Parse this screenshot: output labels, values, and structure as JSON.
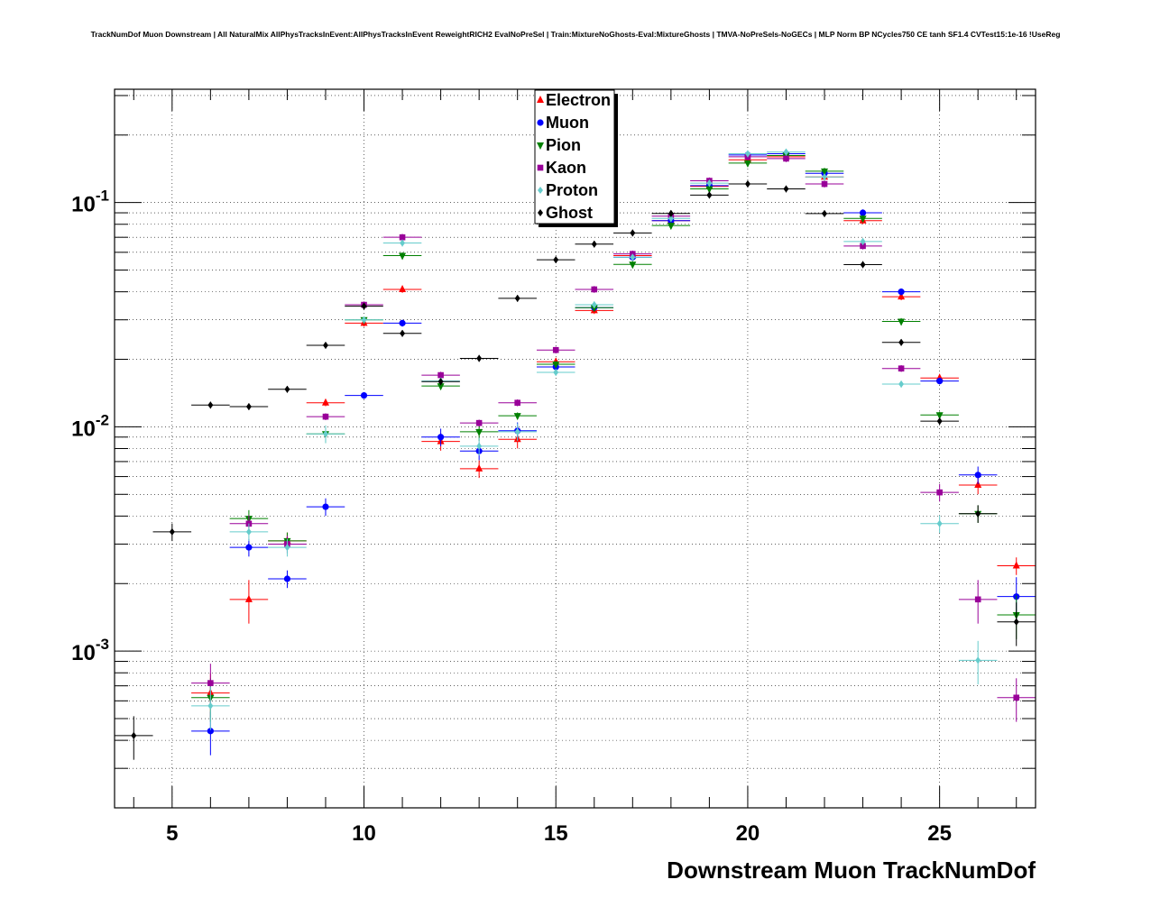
{
  "chart_data": {
    "type": "scatter",
    "title": "TrackNumDof Muon Downstream | All NaturalMix AllPhysTracksInEvent:AllPhysTracksInEvent ReweightRICH2 EvalNoPreSel | Train:MixtureNoGhosts-Eval:MixtureGhosts | TMVA-NoPreSels-NoGECs | MLP Norm BP NCycles750 CE tanh SF1.4 CVTest15:1e-16 !UseReg",
    "xlabel": "Downstream Muon TrackNumDof",
    "ylabel": "",
    "xlim": [
      3.5,
      27.5
    ],
    "ylim": [
      0.0002,
      0.32
    ],
    "yscale": "log",
    "grid": true,
    "legend_position": "top-center",
    "x_ticks": [
      "5",
      "10",
      "15",
      "20",
      "25"
    ],
    "y_ticks": [
      {
        "base": "10",
        "exp": "-1"
      },
      {
        "base": "10",
        "exp": "-2"
      },
      {
        "base": "10",
        "exp": "-3"
      }
    ],
    "series": [
      {
        "name": "Electron",
        "color": "#ff0000",
        "marker": "triangle-up",
        "points": [
          [
            6,
            0.00065
          ],
          [
            7,
            0.0017
          ],
          [
            8,
            0.0031
          ],
          [
            9,
            0.0128
          ],
          [
            10,
            0.029
          ],
          [
            11,
            0.041
          ],
          [
            12,
            0.0086
          ],
          [
            13,
            0.0065
          ],
          [
            14,
            0.0088
          ],
          [
            15,
            0.0195
          ],
          [
            16,
            0.033
          ],
          [
            17,
            0.058
          ],
          [
            18,
            0.083
          ],
          [
            19,
            0.118
          ],
          [
            20,
            0.155
          ],
          [
            21,
            0.16
          ],
          [
            22,
            0.13
          ],
          [
            23,
            0.083
          ],
          [
            24,
            0.038
          ],
          [
            25,
            0.0165
          ],
          [
            26,
            0.0055
          ],
          [
            27,
            0.0024
          ]
        ]
      },
      {
        "name": "Muon",
        "color": "#0000ff",
        "marker": "circle",
        "points": [
          [
            6,
            0.00044
          ],
          [
            7,
            0.0029
          ],
          [
            8,
            0.0021
          ],
          [
            9,
            0.0044
          ],
          [
            10,
            0.0138
          ],
          [
            11,
            0.029
          ],
          [
            12,
            0.009
          ],
          [
            13,
            0.0078
          ],
          [
            14,
            0.0096
          ],
          [
            15,
            0.0185
          ],
          [
            16,
            0.034
          ],
          [
            17,
            0.057
          ],
          [
            18,
            0.083
          ],
          [
            19,
            0.119
          ],
          [
            20,
            0.163
          ],
          [
            21,
            0.165
          ],
          [
            22,
            0.135
          ],
          [
            23,
            0.09
          ],
          [
            24,
            0.04
          ],
          [
            25,
            0.016
          ],
          [
            26,
            0.0061
          ],
          [
            27,
            0.00175
          ]
        ]
      },
      {
        "name": "Pion",
        "color": "#008000",
        "marker": "triangle-down",
        "points": [
          [
            6,
            0.00062
          ],
          [
            7,
            0.0039
          ],
          [
            8,
            0.0031
          ],
          [
            9,
            0.0093
          ],
          [
            10,
            0.03
          ],
          [
            11,
            0.058
          ],
          [
            12,
            0.0152
          ],
          [
            13,
            0.0095
          ],
          [
            14,
            0.0112
          ],
          [
            15,
            0.019
          ],
          [
            16,
            0.034
          ],
          [
            17,
            0.053
          ],
          [
            18,
            0.079
          ],
          [
            19,
            0.115
          ],
          [
            20,
            0.15
          ],
          [
            21,
            0.162
          ],
          [
            22,
            0.138
          ],
          [
            23,
            0.085
          ],
          [
            24,
            0.0295
          ],
          [
            25,
            0.0113
          ],
          [
            26,
            0.0041
          ],
          [
            27,
            0.00145
          ]
        ]
      },
      {
        "name": "Kaon",
        "color": "#990099",
        "marker": "square",
        "points": [
          [
            6,
            0.00072
          ],
          [
            7,
            0.0037
          ],
          [
            8,
            0.003
          ],
          [
            9,
            0.0111
          ],
          [
            10,
            0.035
          ],
          [
            11,
            0.07
          ],
          [
            12,
            0.017
          ],
          [
            13,
            0.0104
          ],
          [
            14,
            0.0128
          ],
          [
            15,
            0.022
          ],
          [
            16,
            0.041
          ],
          [
            17,
            0.059
          ],
          [
            18,
            0.087
          ],
          [
            19,
            0.125
          ],
          [
            20,
            0.16
          ],
          [
            21,
            0.157
          ],
          [
            22,
            0.121
          ],
          [
            23,
            0.064
          ],
          [
            24,
            0.0182
          ],
          [
            25,
            0.0051
          ],
          [
            26,
            0.0017
          ],
          [
            27,
            0.00062
          ]
        ]
      },
      {
        "name": "Proton",
        "color": "#66cccc",
        "marker": "diamond",
        "points": [
          [
            6,
            0.00057
          ],
          [
            7,
            0.0034
          ],
          [
            8,
            0.0029
          ],
          [
            9,
            0.0093
          ],
          [
            10,
            0.03
          ],
          [
            11,
            0.066
          ],
          [
            12,
            0.016
          ],
          [
            13,
            0.0082
          ],
          [
            14,
            0.0095
          ],
          [
            15,
            0.0175
          ],
          [
            16,
            0.035
          ],
          [
            17,
            0.057
          ],
          [
            18,
            0.085
          ],
          [
            19,
            0.122
          ],
          [
            20,
            0.165
          ],
          [
            21,
            0.168
          ],
          [
            22,
            0.13
          ],
          [
            23,
            0.067
          ],
          [
            24,
            0.0155
          ],
          [
            25,
            0.0037
          ],
          [
            26,
            0.00091
          ]
        ]
      },
      {
        "name": "Ghost",
        "color": "#000000",
        "marker": "diamond",
        "points": [
          [
            4,
            0.00042
          ],
          [
            5,
            0.0034
          ],
          [
            6,
            0.0125
          ],
          [
            7,
            0.0123
          ],
          [
            8,
            0.0147
          ],
          [
            9,
            0.0231
          ],
          [
            10,
            0.0345
          ],
          [
            11,
            0.0261
          ],
          [
            12,
            0.0159
          ],
          [
            13,
            0.0202
          ],
          [
            14,
            0.0374
          ],
          [
            15,
            0.0556
          ],
          [
            16,
            0.0653
          ],
          [
            17,
            0.0732
          ],
          [
            18,
            0.0894
          ],
          [
            19,
            0.108
          ],
          [
            20,
            0.121
          ],
          [
            21,
            0.115
          ],
          [
            22,
            0.0893
          ],
          [
            23,
            0.0529
          ],
          [
            24,
            0.0238
          ],
          [
            25,
            0.0106
          ],
          [
            26,
            0.0041
          ],
          [
            27,
            0.00135
          ]
        ]
      }
    ]
  }
}
